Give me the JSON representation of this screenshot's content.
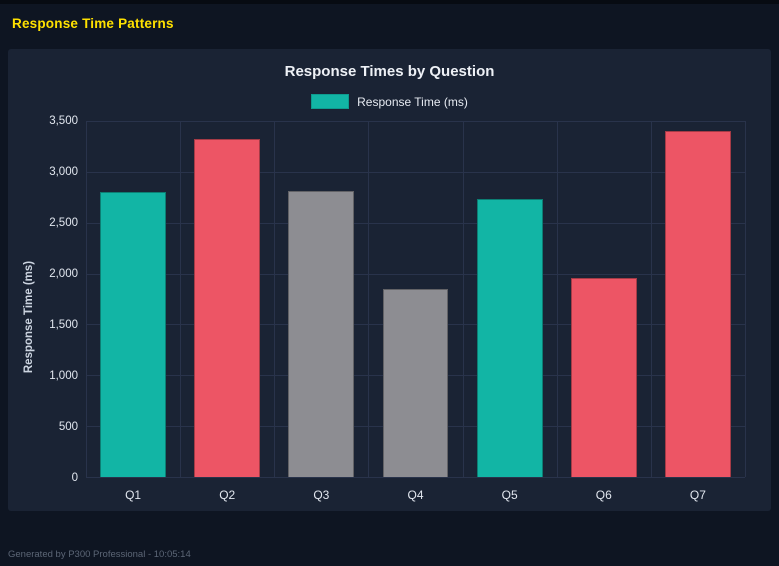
{
  "page": {
    "title": "Response Time Patterns",
    "footer": "Generated by P300 Professional - 10:05:14"
  },
  "colors": {
    "accent_yellow": "#ffe100",
    "teal": "#12b5a5",
    "red": "#ed5565",
    "gray": "#8d8d92",
    "panel_bg": "#1a2334",
    "page_bg": "#0e1522",
    "gridline": "#29334b"
  },
  "chart_data": {
    "type": "bar",
    "title": "Response Times by Question",
    "legend": [
      {
        "label": "Response Time (ms)",
        "color": "#12b5a5"
      }
    ],
    "legend_position": "top",
    "grid": true,
    "xlabel": "",
    "ylabel": "Response Time (ms)",
    "ylim": [
      0,
      3500
    ],
    "ytick_labels": [
      "0",
      "500",
      "1,000",
      "1,500",
      "2,000",
      "2,500",
      "3,000",
      "3,500"
    ],
    "categories": [
      "Q1",
      "Q2",
      "Q3",
      "Q4",
      "Q5",
      "Q6",
      "Q7"
    ],
    "series": [
      {
        "name": "Response Time (ms)",
        "values": [
          2800,
          3320,
          2810,
          1850,
          2730,
          1960,
          3400
        ],
        "bar_colors": [
          "#12b5a5",
          "#ed5565",
          "#8d8d92",
          "#8d8d92",
          "#12b5a5",
          "#ed5565",
          "#ed5565"
        ]
      }
    ]
  }
}
